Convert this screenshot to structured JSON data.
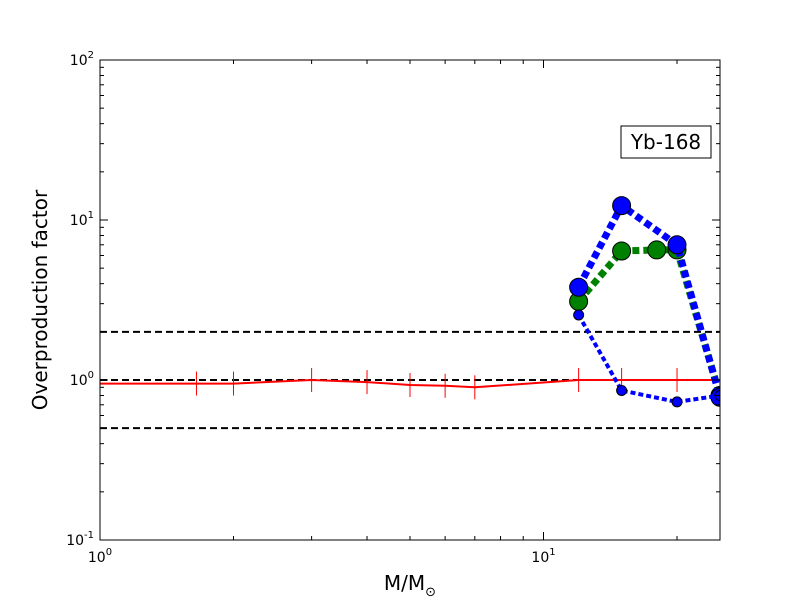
{
  "chart_data": {
    "type": "line",
    "title": "",
    "annotation": "Yb-168",
    "xlabel": "M/M",
    "xlabel_sub": "⊙",
    "ylabel": "Overproduction factor",
    "x_scale": "log",
    "y_scale": "log",
    "xlim": [
      1,
      25
    ],
    "ylim": [
      0.1,
      100
    ],
    "grid": false,
    "x_ticks": [
      {
        "value": 1,
        "base": "10",
        "exp": "0"
      },
      {
        "value": 10,
        "base": "10",
        "exp": "1"
      }
    ],
    "y_ticks": [
      {
        "value": 0.1,
        "base": "10",
        "exp": "-1"
      },
      {
        "value": 1,
        "base": "10",
        "exp": "0"
      },
      {
        "value": 10,
        "base": "10",
        "exp": "1"
      },
      {
        "value": 100,
        "base": "10",
        "exp": "2"
      }
    ],
    "hlines": [
      {
        "y": 0.5,
        "color": "#000000",
        "style": "dashed"
      },
      {
        "y": 1.0,
        "color": "#000000",
        "style": "dashed"
      },
      {
        "y": 2.0,
        "color": "#000000",
        "style": "dashed"
      }
    ],
    "series": [
      {
        "color": "#ff0000",
        "style": "solid",
        "marker": "vline",
        "x": [
          1,
          1.65,
          2,
          3,
          4,
          5,
          6,
          7,
          12,
          15,
          20,
          25
        ],
        "y": [
          0.95,
          0.95,
          0.95,
          1.0,
          0.97,
          0.93,
          0.92,
          0.9,
          1.0,
          1.0,
          1.0,
          1.0
        ]
      },
      {
        "color": "#008000",
        "style": "dotted-thick",
        "marker": "circle-large",
        "x": [
          12,
          15,
          18,
          20,
          25
        ],
        "y": [
          3.1,
          6.4,
          6.5,
          6.5,
          0.8
        ]
      },
      {
        "color": "#0000ff",
        "style": "dotted-thick",
        "marker": "circle-large",
        "x": [
          12,
          15,
          20,
          25
        ],
        "y": [
          3.8,
          12.3,
          7.0,
          0.78
        ]
      },
      {
        "color": "#0000ff",
        "style": "dotted",
        "marker": "circle-small",
        "x": [
          12,
          15,
          20,
          25
        ],
        "y": [
          2.55,
          0.86,
          0.73,
          0.8
        ]
      }
    ]
  }
}
